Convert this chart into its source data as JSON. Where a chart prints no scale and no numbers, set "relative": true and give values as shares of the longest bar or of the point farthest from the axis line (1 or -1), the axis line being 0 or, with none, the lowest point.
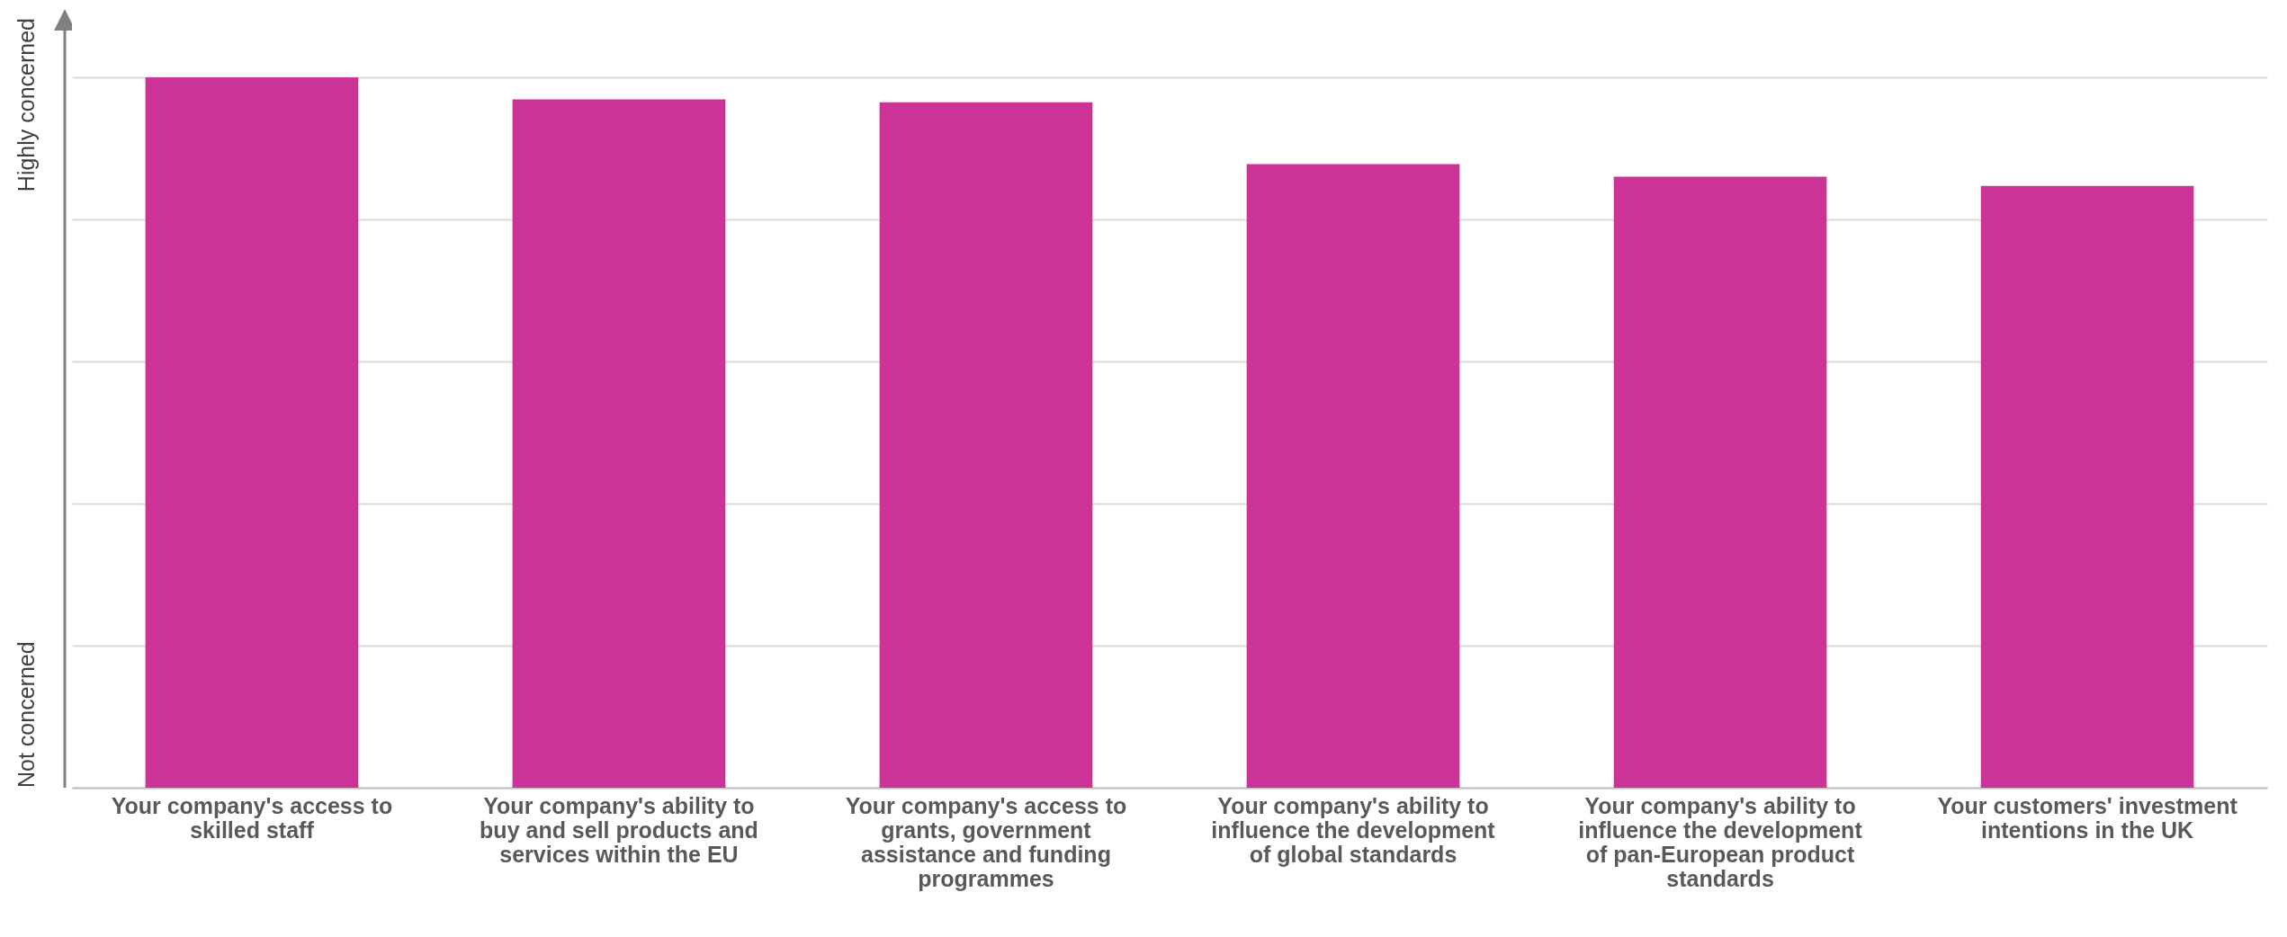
{
  "chart_data": {
    "type": "bar",
    "relative": true,
    "grid": "y",
    "color": "#cb3396",
    "categories": [
      "Your company's access to skilled staff",
      "Your company's ability to buy and sell products and services within the EU",
      "Your company's access to grants, government assistance and funding programmes",
      "Your company's ability to influence the development of global standards",
      "Your company's ability to influence the development of pan-European product standards",
      "Your customers' investment intentions in the UK"
    ],
    "values": [
      1,
      0.969,
      0.965,
      0.878,
      0.86,
      0.847
    ],
    "annotations": [
      "Highly concerned",
      "Not concerned"
    ]
  }
}
